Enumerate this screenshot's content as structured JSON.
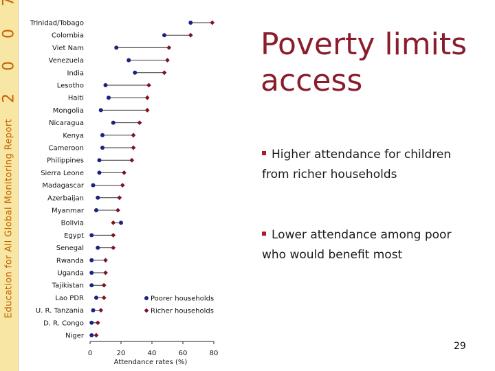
{
  "sidebar": {
    "year": "2 0 0 7",
    "report": "Education for All Global Monitoring Report"
  },
  "slide": {
    "title": "Poverty limits access",
    "bullets": [
      "Higher attendance for children from richer households",
      "Lower attendance among poor who would benefit most"
    ],
    "page_number": "29"
  },
  "colors": {
    "poorer": "#1a237e",
    "richer": "#7b1525",
    "title": "#8b1c2c",
    "sidebar_bg": "#f7e6a4",
    "sidebar_text": "#c46200"
  },
  "chart_data": {
    "type": "dot",
    "categories": [
      "Trinidad/Tobago",
      "Colombia",
      "Viet Nam",
      "Venezuela",
      "India",
      "Lesotho",
      "Haiti",
      "Mongolia",
      "Nicaragua",
      "Kenya",
      "Cameroon",
      "Philippines",
      "Sierra Leone",
      "Madagascar",
      "Azerbaijan",
      "Myanmar",
      "Bolivia",
      "Egypt",
      "Senegal",
      "Rwanda",
      "Uganda",
      "Tajikistan",
      "Lao PDR",
      "U. R. Tanzania",
      "D. R. Congo",
      "Niger"
    ],
    "series": [
      {
        "name": "Poorer households",
        "marker": "circle",
        "values": [
          65,
          48,
          17,
          25,
          29,
          10,
          12,
          7,
          15,
          8,
          8,
          6,
          6,
          2,
          5,
          4,
          20,
          1,
          5,
          1,
          1,
          1,
          4,
          2,
          1,
          1
        ]
      },
      {
        "name": "Richer households",
        "marker": "diamond",
        "values": [
          79,
          65,
          51,
          50,
          48,
          38,
          37,
          37,
          32,
          28,
          28,
          27,
          22,
          21,
          19,
          18,
          15,
          15,
          15,
          10,
          10,
          9,
          9,
          7,
          5,
          4
        ]
      }
    ],
    "xlabel": "Attendance rates (%)",
    "xticks": [
      0,
      20,
      40,
      60,
      80
    ],
    "xlim": [
      0,
      80
    ],
    "grid": false,
    "legend": "inside, lower middle"
  }
}
